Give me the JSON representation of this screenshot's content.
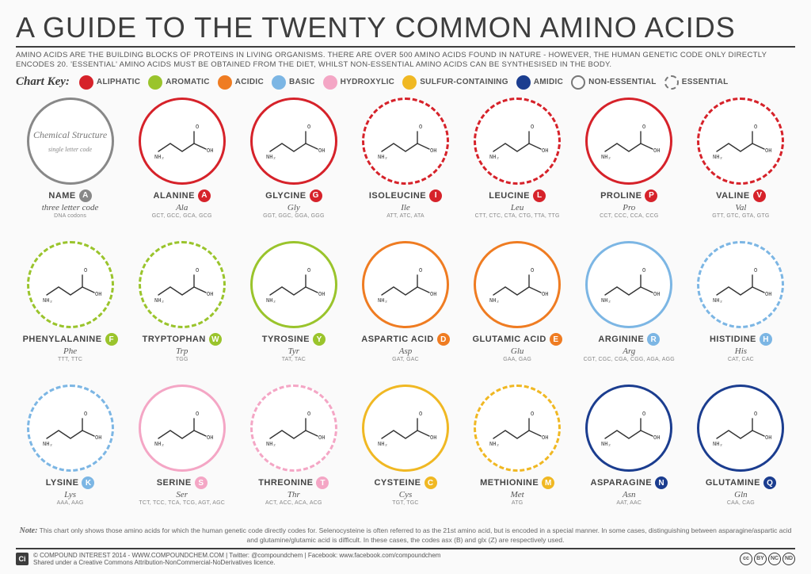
{
  "title": "A GUIDE TO THE TWENTY COMMON AMINO ACIDS",
  "intro": "AMINO ACIDS ARE THE BUILDING BLOCKS OF PROTEINS IN LIVING ORGANISMS. THERE ARE OVER 500 AMINO ACIDS FOUND IN NATURE - HOWEVER, THE HUMAN GENETIC CODE ONLY DIRECTLY ENCODES 20. 'ESSENTIAL' AMINO ACIDS MUST BE OBTAINED FROM THE DIET, WHILST NON-ESSENTIAL AMINO ACIDS CAN BE SYNTHESISED IN THE BODY.",
  "keyLabel": "Chart Key:",
  "categories": {
    "aliphatic": {
      "label": "ALIPHATIC",
      "color": "#d6222a"
    },
    "aromatic": {
      "label": "AROMATIC",
      "color": "#9ac42c"
    },
    "acidic": {
      "label": "ACIDIC",
      "color": "#ef7c22"
    },
    "basic": {
      "label": "BASIC",
      "color": "#7cb6e4"
    },
    "hydroxylic": {
      "label": "HYDROXYLIC",
      "color": "#f4a6c5"
    },
    "sulfur": {
      "label": "SULFUR-CONTAINING",
      "color": "#f0b823"
    },
    "amidic": {
      "label": "AMIDIC",
      "color": "#1b3d8f"
    }
  },
  "styleKey": {
    "nonessential": "NON-ESSENTIAL",
    "essential": "ESSENTIAL"
  },
  "legendCell": {
    "circleTop": "Chemical Structure",
    "circleSub": "single letter code",
    "name": "NAME",
    "letter": "A",
    "tlc": "three letter code",
    "codons": "DNA codons"
  },
  "acids": [
    {
      "name": "ALANINE",
      "letter": "A",
      "tlc": "Ala",
      "codons": "GCT, GCC, GCA, GCG",
      "cat": "aliphatic",
      "essential": false
    },
    {
      "name": "GLYCINE",
      "letter": "G",
      "tlc": "Gly",
      "codons": "GGT, GGC, GGA, GGG",
      "cat": "aliphatic",
      "essential": false
    },
    {
      "name": "ISOLEUCINE",
      "letter": "I",
      "tlc": "Ile",
      "codons": "ATT, ATC, ATA",
      "cat": "aliphatic",
      "essential": true
    },
    {
      "name": "LEUCINE",
      "letter": "L",
      "tlc": "Leu",
      "codons": "CTT, CTC, CTA, CTG, TTA, TTG",
      "cat": "aliphatic",
      "essential": true
    },
    {
      "name": "PROLINE",
      "letter": "P",
      "tlc": "Pro",
      "codons": "CCT, CCC, CCA, CCG",
      "cat": "aliphatic",
      "essential": false
    },
    {
      "name": "VALINE",
      "letter": "V",
      "tlc": "Val",
      "codons": "GTT, GTC, GTA, GTG",
      "cat": "aliphatic",
      "essential": true
    },
    {
      "name": "PHENYLALANINE",
      "letter": "F",
      "tlc": "Phe",
      "codons": "TTT, TTC",
      "cat": "aromatic",
      "essential": true
    },
    {
      "name": "TRYPTOPHAN",
      "letter": "W",
      "tlc": "Trp",
      "codons": "TGG",
      "cat": "aromatic",
      "essential": true
    },
    {
      "name": "TYROSINE",
      "letter": "Y",
      "tlc": "Tyr",
      "codons": "TAT, TAC",
      "cat": "aromatic",
      "essential": false
    },
    {
      "name": "ASPARTIC ACID",
      "letter": "D",
      "tlc": "Asp",
      "codons": "GAT, GAC",
      "cat": "acidic",
      "essential": false
    },
    {
      "name": "GLUTAMIC ACID",
      "letter": "E",
      "tlc": "Glu",
      "codons": "GAA, GAG",
      "cat": "acidic",
      "essential": false
    },
    {
      "name": "ARGININE",
      "letter": "R",
      "tlc": "Arg",
      "codons": "CGT, CGC, CGA, CGG, AGA, AGG",
      "cat": "basic",
      "essential": false
    },
    {
      "name": "HISTIDINE",
      "letter": "H",
      "tlc": "His",
      "codons": "CAT, CAC",
      "cat": "basic",
      "essential": true
    },
    {
      "name": "LYSINE",
      "letter": "K",
      "tlc": "Lys",
      "codons": "AAA, AAG",
      "cat": "basic",
      "essential": true
    },
    {
      "name": "SERINE",
      "letter": "S",
      "tlc": "Ser",
      "codons": "TCT, TCC, TCA, TCG, AGT, AGC",
      "cat": "hydroxylic",
      "essential": false
    },
    {
      "name": "THREONINE",
      "letter": "T",
      "tlc": "Thr",
      "codons": "ACT, ACC, ACA, ACG",
      "cat": "hydroxylic",
      "essential": true
    },
    {
      "name": "CYSTEINE",
      "letter": "C",
      "tlc": "Cys",
      "codons": "TGT, TGC",
      "cat": "sulfur",
      "essential": false
    },
    {
      "name": "METHIONINE",
      "letter": "M",
      "tlc": "Met",
      "codons": "ATG",
      "cat": "sulfur",
      "essential": true
    },
    {
      "name": "ASPARAGINE",
      "letter": "N",
      "tlc": "Asn",
      "codons": "AAT, AAC",
      "cat": "amidic",
      "essential": false
    },
    {
      "name": "GLUTAMINE",
      "letter": "Q",
      "tlc": "Gln",
      "codons": "CAA, CAG",
      "cat": "amidic",
      "essential": false
    }
  ],
  "note": "This chart only shows those amino acids for which the human genetic code directly codes for. Selenocysteine is often referred to as the 21st amino acid, but is encoded in a special manner. In some cases, distinguishing between asparagine/aspartic acid and glutamine/glutamic acid is difficult. In these cases, the codes asx (B) and glx (Z) are respectively used.",
  "noteLabel": "Note:",
  "footer": {
    "copyright": "© COMPOUND INTEREST 2014 - WWW.COMPOUNDCHEM.COM | Twitter: @compoundchem | Facebook: www.facebook.com/compoundchem",
    "licence": "Shared under a Creative Commons Attribution-NonCommercial-NoDerivatives licence.",
    "ci": "Ci",
    "cc": [
      "cc",
      "BY",
      "NC",
      "ND"
    ]
  }
}
